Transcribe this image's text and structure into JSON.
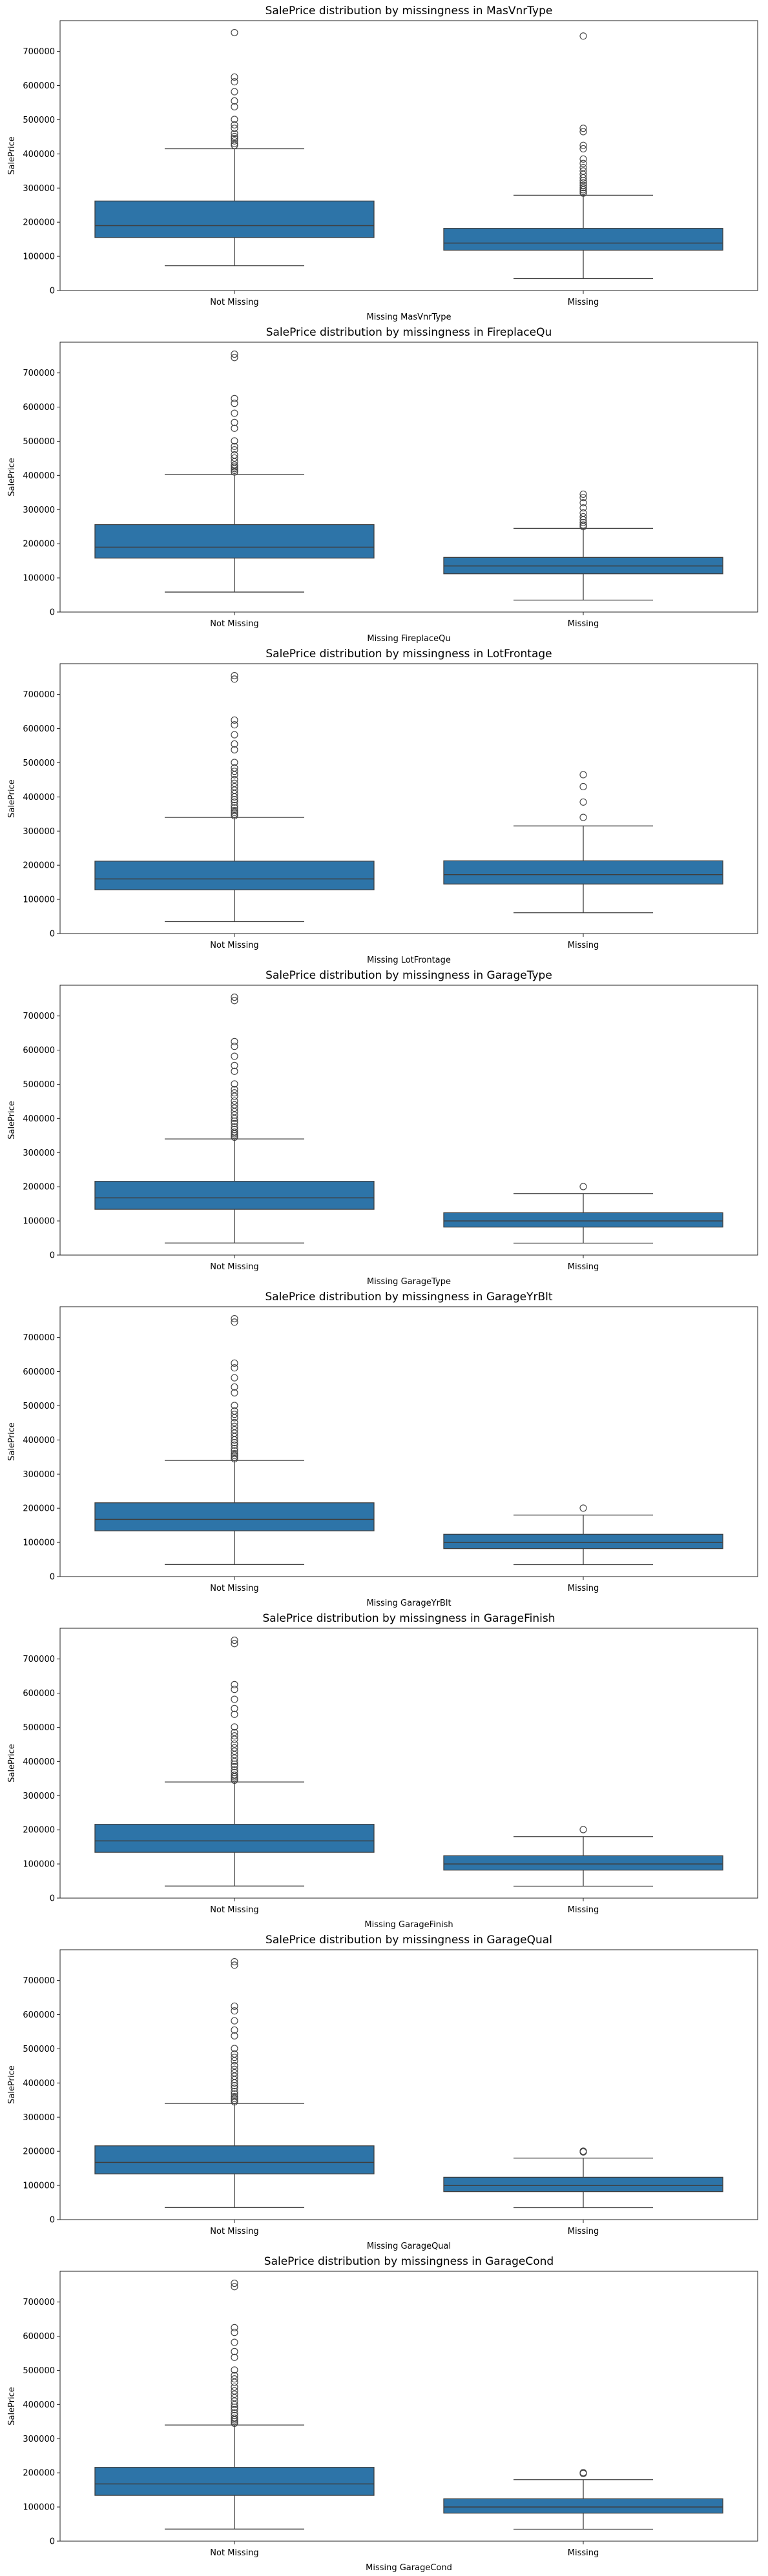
{
  "chart_data": [
    {
      "type": "box",
      "title": "SalePrice distribution by missingness in MasVnrType",
      "xlabel": "Missing MasVnrType",
      "ylabel": "SalePrice",
      "ylim": [
        0,
        790000
      ],
      "yticks": [
        0,
        100000,
        200000,
        300000,
        400000,
        500000,
        600000,
        700000
      ],
      "categories": [
        "Not Missing",
        "Missing"
      ],
      "boxes": [
        {
          "category": "Not Missing",
          "whisker_low": 72500,
          "q1": 155000,
          "median": 190000,
          "q3": 262000,
          "whisker_high": 415000,
          "outliers": [
            425000,
            430000,
            438000,
            445000,
            451000,
            460000,
            475000,
            485000,
            501000,
            538000,
            555000,
            582000,
            611000,
            625000,
            755000
          ]
        },
        {
          "category": "Missing",
          "whisker_low": 34900,
          "q1": 118000,
          "median": 139000,
          "q3": 182000,
          "whisker_high": 279000,
          "outliers": [
            285000,
            290000,
            295000,
            301000,
            308000,
            315000,
            322000,
            330000,
            340000,
            350000,
            360000,
            372000,
            385000,
            415000,
            425000,
            465000,
            475000,
            745000
          ]
        }
      ],
      "color": "#2d74a8"
    },
    {
      "type": "box",
      "title": "SalePrice distribution by missingness in FireplaceQu",
      "xlabel": "Missing FireplaceQu",
      "ylabel": "SalePrice",
      "ylim": [
        0,
        790000
      ],
      "yticks": [
        0,
        100000,
        200000,
        300000,
        400000,
        500000,
        600000,
        700000
      ],
      "categories": [
        "Not Missing",
        "Missing"
      ],
      "boxes": [
        {
          "category": "Not Missing",
          "whisker_low": 58500,
          "q1": 158000,
          "median": 190000,
          "q3": 256000,
          "whisker_high": 402000,
          "outliers": [
            410000,
            415000,
            420000,
            425000,
            430000,
            440000,
            451000,
            460000,
            475000,
            485000,
            501000,
            538000,
            555000,
            582000,
            611000,
            625000,
            745000,
            755000
          ]
        },
        {
          "category": "Missing",
          "whisker_low": 34900,
          "q1": 112000,
          "median": 135000,
          "q3": 160000,
          "whisker_high": 245000,
          "outliers": [
            250000,
            255000,
            262000,
            270000,
            279000,
            290000,
            305000,
            320000,
            335000,
            345000
          ]
        }
      ],
      "color": "#2d74a8"
    },
    {
      "type": "box",
      "title": "SalePrice distribution by missingness in LotFrontage",
      "xlabel": "Missing LotFrontage",
      "ylabel": "SalePrice",
      "ylim": [
        0,
        790000
      ],
      "yticks": [
        0,
        100000,
        200000,
        300000,
        400000,
        500000,
        600000,
        700000
      ],
      "categories": [
        "Not Missing",
        "Missing"
      ],
      "boxes": [
        {
          "category": "Not Missing",
          "whisker_low": 34900,
          "q1": 128000,
          "median": 160000,
          "q3": 212000,
          "whisker_high": 340000,
          "outliers": [
            345000,
            350000,
            355000,
            360000,
            368000,
            375000,
            385000,
            392000,
            400000,
            410000,
            420000,
            430000,
            440000,
            451000,
            465000,
            475000,
            485000,
            501000,
            538000,
            555000,
            582000,
            611000,
            625000,
            745000,
            755000
          ]
        },
        {
          "category": "Missing",
          "whisker_low": 61000,
          "q1": 145000,
          "median": 172500,
          "q3": 213000,
          "whisker_high": 315000,
          "outliers": [
            340000,
            385000,
            430000,
            465000
          ]
        }
      ],
      "color": "#2d74a8"
    },
    {
      "type": "box",
      "title": "SalePrice distribution by missingness in GarageType",
      "xlabel": "Missing GarageType",
      "ylabel": "SalePrice",
      "ylim": [
        0,
        790000
      ],
      "yticks": [
        0,
        100000,
        200000,
        300000,
        400000,
        500000,
        600000,
        700000
      ],
      "categories": [
        "Not Missing",
        "Missing"
      ],
      "boxes": [
        {
          "category": "Not Missing",
          "whisker_low": 35311,
          "q1": 134000,
          "median": 167500,
          "q3": 216000,
          "whisker_high": 340000,
          "outliers": [
            345000,
            350000,
            355000,
            360000,
            368000,
            375000,
            385000,
            392000,
            400000,
            410000,
            420000,
            430000,
            440000,
            451000,
            465000,
            475000,
            485000,
            501000,
            538000,
            555000,
            582000,
            611000,
            625000,
            745000,
            755000
          ]
        },
        {
          "category": "Missing",
          "whisker_low": 34900,
          "q1": 82000,
          "median": 100000,
          "q3": 124000,
          "whisker_high": 180000,
          "outliers": [
            200500
          ]
        }
      ],
      "color": "#2d74a8"
    },
    {
      "type": "box",
      "title": "SalePrice distribution by missingness in GarageYrBlt",
      "xlabel": "Missing GarageYrBlt",
      "ylabel": "SalePrice",
      "ylim": [
        0,
        790000
      ],
      "yticks": [
        0,
        100000,
        200000,
        300000,
        400000,
        500000,
        600000,
        700000
      ],
      "categories": [
        "Not Missing",
        "Missing"
      ],
      "boxes": [
        {
          "category": "Not Missing",
          "whisker_low": 35311,
          "q1": 134000,
          "median": 167500,
          "q3": 216000,
          "whisker_high": 340000,
          "outliers": [
            345000,
            350000,
            355000,
            360000,
            368000,
            375000,
            385000,
            392000,
            400000,
            410000,
            420000,
            430000,
            440000,
            451000,
            465000,
            475000,
            485000,
            501000,
            538000,
            555000,
            582000,
            611000,
            625000,
            745000,
            755000
          ]
        },
        {
          "category": "Missing",
          "whisker_low": 34900,
          "q1": 82000,
          "median": 100000,
          "q3": 124000,
          "whisker_high": 180000,
          "outliers": [
            200500
          ]
        }
      ],
      "color": "#2d74a8"
    },
    {
      "type": "box",
      "title": "SalePrice distribution by missingness in GarageFinish",
      "xlabel": "Missing GarageFinish",
      "ylabel": "SalePrice",
      "ylim": [
        0,
        790000
      ],
      "yticks": [
        0,
        100000,
        200000,
        300000,
        400000,
        500000,
        600000,
        700000
      ],
      "categories": [
        "Not Missing",
        "Missing"
      ],
      "boxes": [
        {
          "category": "Not Missing",
          "whisker_low": 35311,
          "q1": 134000,
          "median": 167500,
          "q3": 216000,
          "whisker_high": 340000,
          "outliers": [
            345000,
            350000,
            355000,
            360000,
            368000,
            375000,
            385000,
            392000,
            400000,
            410000,
            420000,
            430000,
            440000,
            451000,
            465000,
            475000,
            485000,
            501000,
            538000,
            555000,
            582000,
            611000,
            625000,
            745000,
            755000
          ]
        },
        {
          "category": "Missing",
          "whisker_low": 34900,
          "q1": 82000,
          "median": 100000,
          "q3": 124000,
          "whisker_high": 180000,
          "outliers": [
            200500
          ]
        }
      ],
      "color": "#2d74a8"
    },
    {
      "type": "box",
      "title": "SalePrice distribution by missingness in GarageQual",
      "xlabel": "Missing GarageQual",
      "ylabel": "SalePrice",
      "ylim": [
        0,
        790000
      ],
      "yticks": [
        0,
        100000,
        200000,
        300000,
        400000,
        500000,
        600000,
        700000
      ],
      "categories": [
        "Not Missing",
        "Missing"
      ],
      "boxes": [
        {
          "category": "Not Missing",
          "whisker_low": 35311,
          "q1": 134000,
          "median": 167500,
          "q3": 216000,
          "whisker_high": 340000,
          "outliers": [
            345000,
            350000,
            355000,
            360000,
            368000,
            375000,
            385000,
            392000,
            400000,
            410000,
            420000,
            430000,
            440000,
            451000,
            465000,
            475000,
            485000,
            501000,
            538000,
            555000,
            582000,
            611000,
            625000,
            745000,
            755000
          ]
        },
        {
          "category": "Missing",
          "whisker_low": 34900,
          "q1": 82000,
          "median": 100000,
          "q3": 124000,
          "whisker_high": 180000,
          "outliers": [
            198000,
            200500
          ]
        }
      ],
      "color": "#2d74a8"
    },
    {
      "type": "box",
      "title": "SalePrice distribution by missingness in GarageCond",
      "xlabel": "Missing GarageCond",
      "ylabel": "SalePrice",
      "ylim": [
        0,
        790000
      ],
      "yticks": [
        0,
        100000,
        200000,
        300000,
        400000,
        500000,
        600000,
        700000
      ],
      "categories": [
        "Not Missing",
        "Missing"
      ],
      "boxes": [
        {
          "category": "Not Missing",
          "whisker_low": 35311,
          "q1": 134000,
          "median": 167500,
          "q3": 216000,
          "whisker_high": 340000,
          "outliers": [
            345000,
            350000,
            355000,
            360000,
            368000,
            375000,
            385000,
            392000,
            400000,
            410000,
            420000,
            430000,
            440000,
            451000,
            465000,
            475000,
            485000,
            501000,
            538000,
            555000,
            582000,
            611000,
            625000,
            745000,
            755000
          ]
        },
        {
          "category": "Missing",
          "whisker_low": 34900,
          "q1": 82000,
          "median": 100000,
          "q3": 124000,
          "whisker_high": 180000,
          "outliers": [
            198000,
            200500
          ]
        }
      ],
      "color": "#2d74a8"
    }
  ]
}
